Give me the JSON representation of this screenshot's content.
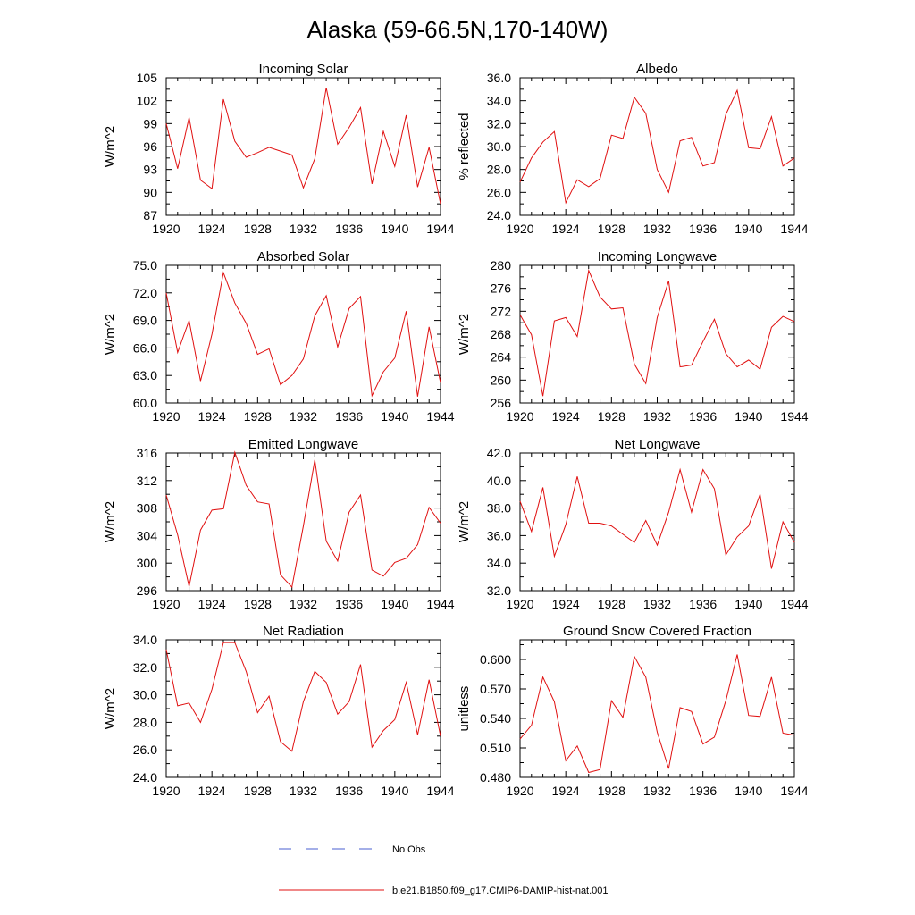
{
  "figure": {
    "title": "Alaska (59-66.5N,170-140W)"
  },
  "chart_data": [
    {
      "type": "line",
      "title": "Incoming Solar",
      "xlabel": "",
      "ylabel": "W/m^2",
      "xlim": [
        1920,
        1944
      ],
      "ylim": [
        87,
        105
      ],
      "x_ticks": [
        "1920",
        "1924",
        "1928",
        "1932",
        "1936",
        "1940",
        "1944"
      ],
      "y_ticks": [
        "87",
        "90",
        "93",
        "96",
        "99",
        "102",
        "105"
      ],
      "series": [
        {
          "name": "b.e21.B1850.f09_g17.CMIP6-DAMIP-hist-nat.001",
          "x": [
            1920,
            1921,
            1922,
            1923,
            1924,
            1925,
            1926,
            1927,
            1928,
            1929,
            1930,
            1931,
            1932,
            1933,
            1934,
            1935,
            1936,
            1937,
            1938,
            1939,
            1940,
            1941,
            1942,
            1943,
            1944
          ],
          "y": [
            99.0,
            93.1,
            99.8,
            91.6,
            90.5,
            102.2,
            96.7,
            94.6,
            95.2,
            95.9,
            95.4,
            94.9,
            90.6,
            94.4,
            103.7,
            96.3,
            98.5,
            101.1,
            91.1,
            98.0,
            93.4,
            100.1,
            90.7,
            95.9,
            88.5
          ]
        }
      ]
    },
    {
      "type": "line",
      "title": "Albedo",
      "xlabel": "",
      "ylabel": "% reflected",
      "xlim": [
        1920,
        1944
      ],
      "ylim": [
        24,
        36
      ],
      "x_ticks": [
        "1920",
        "1924",
        "1928",
        "1932",
        "1936",
        "1940",
        "1944"
      ],
      "y_ticks": [
        "24.0",
        "26.0",
        "28.0",
        "30.0",
        "32.0",
        "34.0",
        "36.0"
      ],
      "series": [
        {
          "name": "b.e21.B1850.f09_g17.CMIP6-DAMIP-hist-nat.001",
          "x": [
            1920,
            1921,
            1922,
            1923,
            1924,
            1925,
            1926,
            1927,
            1928,
            1929,
            1930,
            1931,
            1932,
            1933,
            1934,
            1935,
            1936,
            1937,
            1938,
            1939,
            1940,
            1941,
            1942,
            1943,
            1944
          ],
          "y": [
            26.9,
            29.0,
            30.4,
            31.3,
            25.1,
            27.1,
            26.5,
            27.2,
            31.0,
            30.7,
            34.3,
            32.9,
            28.0,
            26.0,
            30.5,
            30.8,
            28.3,
            28.6,
            32.8,
            34.9,
            29.9,
            29.8,
            32.6,
            28.3,
            29.0
          ]
        }
      ]
    },
    {
      "type": "line",
      "title": "Absorbed Solar",
      "xlabel": "",
      "ylabel": "W/m^2",
      "xlim": [
        1920,
        1944
      ],
      "ylim": [
        60,
        75
      ],
      "x_ticks": [
        "1920",
        "1924",
        "1928",
        "1932",
        "1936",
        "1940",
        "1944"
      ],
      "y_ticks": [
        "60.0",
        "63.0",
        "66.0",
        "69.0",
        "72.0",
        "75.0"
      ],
      "series": [
        {
          "name": "b.e21.B1850.f09_g17.CMIP6-DAMIP-hist-nat.001",
          "x": [
            1920,
            1921,
            1922,
            1923,
            1924,
            1925,
            1926,
            1927,
            1928,
            1929,
            1930,
            1931,
            1932,
            1933,
            1934,
            1935,
            1936,
            1937,
            1938,
            1939,
            1940,
            1941,
            1942,
            1943,
            1944
          ],
          "y": [
            72.0,
            65.5,
            69.0,
            62.4,
            67.5,
            74.2,
            70.9,
            68.7,
            65.3,
            65.9,
            62.0,
            63.0,
            64.8,
            69.5,
            71.7,
            66.1,
            70.3,
            71.6,
            60.8,
            63.4,
            64.9,
            70.0,
            60.7,
            68.3,
            62.2
          ]
        }
      ]
    },
    {
      "type": "line",
      "title": "Incoming Longwave",
      "xlabel": "",
      "ylabel": "W/m^2",
      "xlim": [
        1920,
        1944
      ],
      "ylim": [
        256,
        280
      ],
      "x_ticks": [
        "1920",
        "1924",
        "1928",
        "1932",
        "1936",
        "1940",
        "1944"
      ],
      "y_ticks": [
        "256",
        "260",
        "264",
        "268",
        "272",
        "276",
        "280"
      ],
      "series": [
        {
          "name": "b.e21.B1850.f09_g17.CMIP6-DAMIP-hist-nat.001",
          "x": [
            1920,
            1921,
            1922,
            1923,
            1924,
            1925,
            1926,
            1927,
            1928,
            1929,
            1930,
            1931,
            1932,
            1933,
            1934,
            1935,
            1936,
            1937,
            1938,
            1939,
            1940,
            1941,
            1942,
            1943,
            1944
          ],
          "y": [
            271.4,
            267.9,
            257.2,
            270.3,
            270.9,
            267.6,
            279.1,
            274.5,
            272.4,
            272.6,
            262.8,
            259.4,
            270.9,
            277.3,
            262.3,
            262.6,
            266.7,
            270.6,
            264.6,
            262.3,
            263.5,
            261.9,
            269.2,
            271.1,
            270.2
          ]
        }
      ]
    },
    {
      "type": "line",
      "title": "Emitted Longwave",
      "xlabel": "",
      "ylabel": "W/m^2",
      "xlim": [
        1920,
        1944
      ],
      "ylim": [
        296,
        316
      ],
      "x_ticks": [
        "1920",
        "1924",
        "1928",
        "1932",
        "1936",
        "1940",
        "1944"
      ],
      "y_ticks": [
        "296",
        "300",
        "304",
        "308",
        "312",
        "316"
      ],
      "series": [
        {
          "name": "b.e21.B1850.f09_g17.CMIP6-DAMIP-hist-nat.001",
          "x": [
            1920,
            1921,
            1922,
            1923,
            1924,
            1925,
            1926,
            1927,
            1928,
            1929,
            1930,
            1931,
            1932,
            1933,
            1934,
            1935,
            1936,
            1937,
            1938,
            1939,
            1940,
            1941,
            1942,
            1943,
            1944
          ],
          "y": [
            309.9,
            304.1,
            296.6,
            304.8,
            307.7,
            307.9,
            316.1,
            311.3,
            308.9,
            308.6,
            298.3,
            296.5,
            305.4,
            315.0,
            303.2,
            300.3,
            307.4,
            309.9,
            299.0,
            298.1,
            300.1,
            300.7,
            302.7,
            308.1,
            305.8
          ]
        }
      ]
    },
    {
      "type": "line",
      "title": "Net Longwave",
      "xlabel": "",
      "ylabel": "W/m^2",
      "xlim": [
        1920,
        1944
      ],
      "ylim": [
        32,
        42
      ],
      "x_ticks": [
        "1920",
        "1924",
        "1928",
        "1932",
        "1936",
        "1940",
        "1944"
      ],
      "y_ticks": [
        "32.0",
        "34.0",
        "36.0",
        "38.0",
        "40.0",
        "42.0"
      ],
      "series": [
        {
          "name": "b.e21.B1850.f09_g17.CMIP6-DAMIP-hist-nat.001",
          "x": [
            1920,
            1921,
            1922,
            1923,
            1924,
            1925,
            1926,
            1927,
            1928,
            1929,
            1930,
            1931,
            1932,
            1933,
            1934,
            1935,
            1936,
            1937,
            1938,
            1939,
            1940,
            1941,
            1942,
            1943,
            1944
          ],
          "y": [
            38.5,
            36.3,
            39.5,
            34.5,
            36.8,
            40.3,
            36.9,
            36.9,
            36.7,
            36.1,
            35.5,
            37.1,
            35.3,
            37.7,
            40.8,
            37.7,
            40.8,
            39.4,
            34.6,
            35.9,
            36.7,
            39.0,
            33.6,
            37.0,
            35.5
          ]
        }
      ]
    },
    {
      "type": "line",
      "title": "Net Radiation",
      "xlabel": "",
      "ylabel": "W/m^2",
      "xlim": [
        1920,
        1944
      ],
      "ylim": [
        24,
        34
      ],
      "x_ticks": [
        "1920",
        "1924",
        "1928",
        "1932",
        "1936",
        "1940",
        "1944"
      ],
      "y_ticks": [
        "24.0",
        "26.0",
        "28.0",
        "30.0",
        "32.0",
        "34.0"
      ],
      "series": [
        {
          "name": "b.e21.B1850.f09_g17.CMIP6-DAMIP-hist-nat.001",
          "x": [
            1920,
            1921,
            1922,
            1923,
            1924,
            1925,
            1926,
            1927,
            1928,
            1929,
            1930,
            1931,
            1932,
            1933,
            1934,
            1935,
            1936,
            1937,
            1938,
            1939,
            1940,
            1941,
            1942,
            1943,
            1944
          ],
          "y": [
            33.3,
            29.2,
            29.4,
            28.0,
            30.4,
            33.8,
            33.8,
            31.7,
            28.7,
            29.9,
            26.6,
            25.9,
            29.5,
            31.7,
            30.9,
            28.6,
            29.5,
            32.2,
            26.2,
            27.4,
            28.2,
            30.9,
            27.1,
            31.1,
            27.0
          ]
        }
      ]
    },
    {
      "type": "line",
      "title": "Ground Snow Covered Fraction",
      "xlabel": "",
      "ylabel": "unitless",
      "xlim": [
        1920,
        1944
      ],
      "ylim": [
        0.48,
        0.62
      ],
      "x_ticks": [
        "1920",
        "1924",
        "1928",
        "1932",
        "1936",
        "1940",
        "1944"
      ],
      "y_ticks": [
        "0.480",
        "0.510",
        "0.540",
        "0.570",
        "0.600"
      ],
      "y_tick_values": [
        0.48,
        0.51,
        0.54,
        0.57,
        0.6
      ],
      "series": [
        {
          "name": "b.e21.B1850.f09_g17.CMIP6-DAMIP-hist-nat.001",
          "x": [
            1920,
            1921,
            1922,
            1923,
            1924,
            1925,
            1926,
            1927,
            1928,
            1929,
            1930,
            1931,
            1932,
            1933,
            1934,
            1935,
            1936,
            1937,
            1938,
            1939,
            1940,
            1941,
            1942,
            1943,
            1944
          ],
          "y": [
            0.519,
            0.533,
            0.582,
            0.557,
            0.497,
            0.512,
            0.485,
            0.488,
            0.558,
            0.541,
            0.603,
            0.582,
            0.526,
            0.489,
            0.551,
            0.547,
            0.514,
            0.521,
            0.558,
            0.605,
            0.543,
            0.542,
            0.582,
            0.525,
            0.523
          ]
        }
      ]
    }
  ],
  "legend": {
    "items": [
      {
        "label": "No Obs",
        "style": "dashed",
        "color": "#4a5fd0"
      },
      {
        "label": "b.e21.B1850.f09_g17.CMIP6-DAMIP-hist-nat.001",
        "style": "solid",
        "color": "#e01010"
      }
    ]
  },
  "colors": {
    "series": "#e01010",
    "axes": "#000000"
  }
}
